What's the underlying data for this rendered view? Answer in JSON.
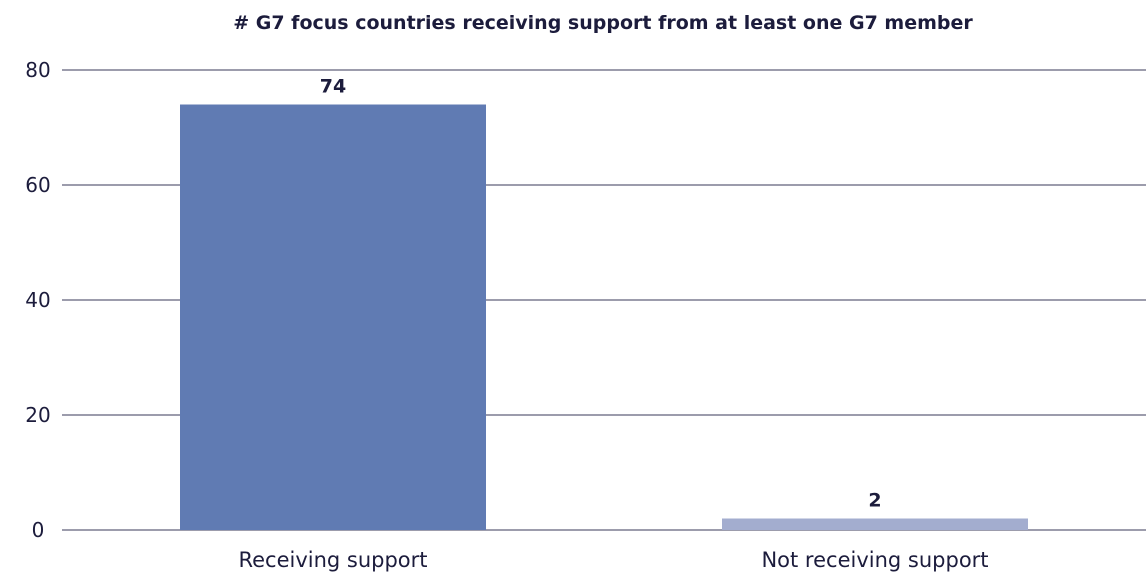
{
  "chart_data": {
    "type": "bar",
    "title": "# G7 focus countries receiving support from at least one G7 member",
    "categories": [
      "Receiving support",
      "Not receiving support"
    ],
    "values": [
      74,
      2
    ],
    "data_labels": [
      "74",
      "2"
    ],
    "xlabel": "",
    "ylabel": "",
    "ylim": [
      0,
      80
    ],
    "yticks": [
      0,
      20,
      40,
      60,
      80
    ],
    "grid": true,
    "legend": "none",
    "colors": [
      "#607bb3",
      "#a3adcf"
    ]
  }
}
